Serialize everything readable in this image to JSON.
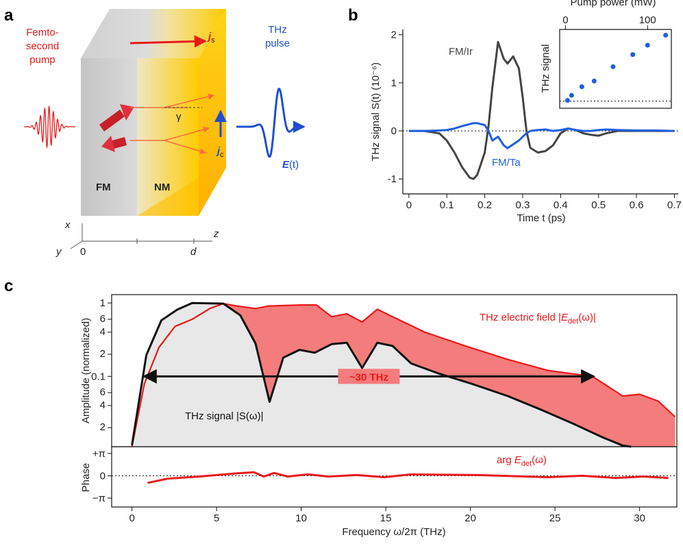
{
  "panel_labels": [
    "a",
    "b",
    "c"
  ],
  "panel_a": {
    "pump_label": [
      "Femto-",
      "second",
      "pump"
    ],
    "pulse_label": [
      "THz",
      "pulse"
    ],
    "field_label": [
      "E",
      "(t)"
    ],
    "js": [
      "j",
      "s"
    ],
    "jc": [
      "j",
      "c"
    ],
    "fm": "FM",
    "nm": "NM",
    "gamma": "γ",
    "axes": {
      "x": "x",
      "y": "y",
      "z": "z",
      "origin": "0",
      "d": "d"
    }
  },
  "chart_data": [
    {
      "type": "line",
      "xlabel": "Time t  (ps)",
      "ylabel": "THz signal S(t)  (10⁻⁶)",
      "x": [
        0,
        0.04,
        0.08,
        0.1,
        0.12,
        0.14,
        0.16,
        0.17,
        0.18,
        0.2,
        0.21,
        0.22,
        0.235,
        0.25,
        0.26,
        0.275,
        0.29,
        0.3,
        0.31,
        0.32,
        0.34,
        0.36,
        0.38,
        0.4,
        0.42,
        0.44,
        0.46,
        0.48,
        0.5,
        0.52,
        0.55,
        0.6,
        0.65,
        0.7
      ],
      "series": [
        {
          "name": "FM/Ir",
          "color": "#444444",
          "values": [
            0,
            0,
            -0.05,
            -0.2,
            -0.45,
            -0.75,
            -0.97,
            -1.0,
            -0.92,
            -0.45,
            0.1,
            0.9,
            1.85,
            1.5,
            1.4,
            1.55,
            1.3,
            0.7,
            0.0,
            -0.35,
            -0.45,
            -0.42,
            -0.3,
            -0.05,
            0.05,
            0.02,
            -0.05,
            -0.08,
            -0.1,
            -0.05,
            0,
            0,
            0,
            0
          ]
        },
        {
          "name": "FM/Ta",
          "color": "#1f5fe0",
          "values": [
            0,
            0,
            0.01,
            0.02,
            0.05,
            0.1,
            0.14,
            0.16,
            0.16,
            0.12,
            0,
            -0.2,
            -0.12,
            -0.3,
            -0.36,
            -0.28,
            -0.2,
            -0.12,
            -0.05,
            0,
            0.02,
            0.03,
            0,
            0.02,
            0.05,
            0.02,
            0,
            0,
            0.02,
            0.03,
            0.02,
            0.01,
            0.01,
            0
          ]
        }
      ],
      "xlim": [
        -0.016,
        0.71
      ],
      "xticks": [
        0,
        0.1,
        0.2,
        0.3,
        0.4,
        0.5,
        0.6,
        0.7
      ],
      "ylim": [
        -1.31,
        2.11
      ],
      "yticks": [
        -1,
        0,
        1,
        2
      ],
      "zero_line": true
    },
    {
      "type": "scatter",
      "xlabel": "Pump power (mW)",
      "ylabel": "THz signal",
      "x": [
        2.5,
        7.5,
        20,
        35,
        58,
        82,
        100,
        122
      ],
      "values": [
        0.01,
        0.08,
        0.2,
        0.28,
        0.48,
        0.65,
        0.78,
        0.92
      ],
      "color": "#1f5fe0",
      "xlim": [
        -7,
        129
      ],
      "xticks": [
        0,
        100
      ],
      "ylim": [
        -0.1,
        1.0
      ],
      "zero_line": true
    },
    {
      "type": "area",
      "ylabel": "Amplitude (normalized)",
      "log_y": true,
      "series": [
        {
          "name": [
            "THz electric field |",
            "E",
            "det",
            "(ω)|"
          ],
          "color": "#e8191b",
          "fill": "#f47c7c",
          "x": [
            0,
            0.73,
            1.6,
            2.55,
            3.56,
            4.6,
            5.4,
            6.2,
            7.3,
            8.1,
            10,
            10.9,
            11.8,
            12.7,
            13.6,
            14.5,
            15.4,
            17.3,
            19.7,
            22.2,
            24.6,
            27.2,
            29,
            30,
            31.1,
            32.1
          ],
          "values": [
            0.011,
            0.079,
            0.25,
            0.48,
            0.6,
            0.84,
            0.98,
            0.91,
            0.84,
            0.91,
            0.94,
            0.94,
            0.65,
            0.71,
            0.55,
            0.82,
            0.65,
            0.4,
            0.26,
            0.17,
            0.12,
            0.1,
            0.054,
            0.057,
            0.046,
            0.028
          ]
        },
        {
          "name": "THz signal |S(ω)|",
          "color": "#111111",
          "fill": "#e8e8e8",
          "x": [
            0,
            0.85,
            1.74,
            2.67,
            3.56,
            5.4,
            6.4,
            7.3,
            8.13,
            8.94,
            9.9,
            10.8,
            11.8,
            12.7,
            13.6,
            14.5,
            15.4,
            16.5,
            18.1,
            20.1,
            22.2,
            24.2,
            26.2,
            27.8,
            29,
            29.5
          ],
          "values": [
            0.0115,
            0.195,
            0.58,
            0.81,
            1.0,
            0.98,
            0.68,
            0.28,
            0.045,
            0.18,
            0.23,
            0.21,
            0.275,
            0.287,
            0.13,
            0.287,
            0.26,
            0.15,
            0.11,
            0.079,
            0.054,
            0.035,
            0.022,
            0.0148,
            0.0114,
            0.011
          ]
        }
      ],
      "bandwidth": {
        "label": "~30 THz",
        "x": [
          0.7,
          27.3
        ],
        "y": 0.1
      },
      "xlim": [
        -1.2,
        32.2
      ],
      "ylim": [
        0.011,
        1.3
      ],
      "yticks": [
        1,
        {
          "value": 0.6,
          "label": "6"
        },
        {
          "value": 0.4,
          "label": "4"
        },
        {
          "value": 0.2,
          "label": "2"
        },
        0.1,
        {
          "value": 0.06,
          "label": "6"
        },
        {
          "value": 0.04,
          "label": "4"
        },
        {
          "value": 0.02,
          "label": "2"
        }
      ]
    },
    {
      "type": "line",
      "xlabel": "Frequency ω/2π (THz)",
      "ylabel": "Phase",
      "x": [
        0.93,
        2.1,
        4,
        6,
        7.2,
        7.8,
        8.4,
        9.2,
        10.4,
        11.6,
        13.3,
        14.9,
        16.5,
        20.5,
        24.6,
        26.6,
        28.6,
        30.2,
        31.7
      ],
      "series": [
        {
          "name": [
            "arg ",
            "E",
            "det",
            "(ω)"
          ],
          "color": "#e8191b",
          "values": [
            -1.0,
            -0.4,
            -0.1,
            0.3,
            0.5,
            -0.1,
            0.4,
            -0.1,
            0.2,
            -0.1,
            0.1,
            -0.2,
            0.2,
            0.1,
            -0.2,
            0,
            -0.3,
            -0.1,
            -0.3
          ]
        }
      ],
      "xlim": [
        -1.2,
        32.2
      ],
      "xticks": [
        0,
        5,
        10,
        15,
        20,
        25,
        30
      ],
      "ylim": [
        -4.39,
        4.09
      ],
      "yticks": [
        {
          "value": 3.1416,
          "label": "+π"
        },
        0,
        {
          "value": -3.1416,
          "label": "−π"
        }
      ],
      "zero_line": true
    }
  ]
}
